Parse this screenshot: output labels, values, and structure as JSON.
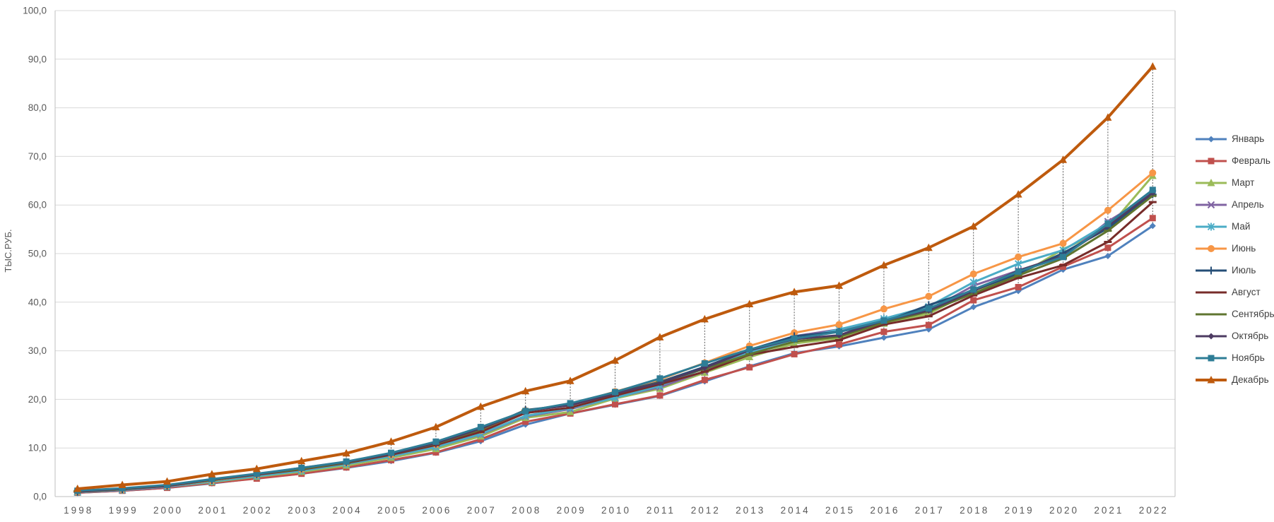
{
  "page": {
    "background": "#ffffff"
  },
  "chart_data": {
    "type": "line",
    "title": "",
    "xlabel": "",
    "ylabel": "ТЫС.РУБ.",
    "ylim": [
      0,
      100
    ],
    "y_tick_labels": [
      "0,0",
      "10,0",
      "20,0",
      "30,0",
      "40,0",
      "50,0",
      "60,0",
      "70,0",
      "80,0",
      "90,0",
      "100,0"
    ],
    "grid": "horizontal",
    "legend_position": "right",
    "high_low_lines": true,
    "axis_color": "#BFBFBF",
    "gridline_color": "#D9D9D9",
    "high_low_line_color": "#595959",
    "tick_label_color": "#595959",
    "categories": [
      "1998",
      "1999",
      "2000",
      "2001",
      "2002",
      "2003",
      "2004",
      "2005",
      "2006",
      "2007",
      "2008",
      "2009",
      "2010",
      "2011",
      "2012",
      "2013",
      "2014",
      "2015",
      "2016",
      "2017",
      "2018",
      "2019",
      "2020",
      "2021",
      "2022"
    ],
    "series": [
      {
        "name": "Январь",
        "color": "#4F81BD",
        "marker": "diamond",
        "line_width": 3,
        "values": [
          0.8,
          1.2,
          1.8,
          2.7,
          3.8,
          4.7,
          5.9,
          7.3,
          9.0,
          11.4,
          14.8,
          17.1,
          18.9,
          20.7,
          23.7,
          26.8,
          29.5,
          30.9,
          32.7,
          34.4,
          39.0,
          42.3,
          46.7,
          49.5,
          55.7
        ]
      },
      {
        "name": "Февраль",
        "color": "#C0504D",
        "marker": "square",
        "line_width": 3,
        "values": [
          0.8,
          1.2,
          1.8,
          2.8,
          3.7,
          4.7,
          6.0,
          7.5,
          9.1,
          11.8,
          15.4,
          17.1,
          19.0,
          20.8,
          24.0,
          26.6,
          29.3,
          31.3,
          33.9,
          35.3,
          40.4,
          43.1,
          47.3,
          51.2,
          57.3
        ]
      },
      {
        "name": "Март",
        "color": "#9BBB59",
        "marker": "triangle",
        "line_width": 3,
        "values": [
          0.9,
          1.3,
          2.0,
          3.0,
          4.1,
          5.1,
          6.4,
          8.0,
          9.8,
          12.4,
          16.2,
          17.4,
          20.2,
          22.2,
          25.5,
          28.7,
          31.5,
          32.6,
          35.6,
          37.6,
          42.4,
          45.4,
          50.9,
          55.2,
          66.0
        ]
      },
      {
        "name": "Апрель",
        "color": "#8064A2",
        "marker": "x",
        "line_width": 3,
        "values": [
          0.9,
          1.3,
          2.0,
          3.1,
          4.3,
          5.4,
          6.7,
          8.3,
          10.2,
          12.8,
          16.5,
          18.0,
          20.4,
          22.5,
          25.8,
          29.5,
          33.0,
          34.4,
          36.2,
          38.3,
          43.4,
          46.5,
          49.3,
          56.6,
          62.3
        ]
      },
      {
        "name": "Май",
        "color": "#4BACC6",
        "marker": "asterisk",
        "line_width": 3,
        "values": [
          0.9,
          1.4,
          2.1,
          3.1,
          4.2,
          5.3,
          6.7,
          8.3,
          10.2,
          12.9,
          16.6,
          18.2,
          20.3,
          22.8,
          26.4,
          29.7,
          32.3,
          34.4,
          36.6,
          39.1,
          44.1,
          47.9,
          50.7,
          56.2,
          62.5
        ]
      },
      {
        "name": "Июнь",
        "color": "#F79646",
        "marker": "circle",
        "line_width": 3,
        "values": [
          1.0,
          1.5,
          2.2,
          3.3,
          4.5,
          5.6,
          7.0,
          8.6,
          10.7,
          13.6,
          17.7,
          18.9,
          21.6,
          24.1,
          27.5,
          31.0,
          33.7,
          35.4,
          38.6,
          41.2,
          45.8,
          49.3,
          52.1,
          58.9,
          66.6
        ]
      },
      {
        "name": "Июль",
        "color": "#254E77",
        "marker": "plus",
        "line_width": 3,
        "values": [
          1.0,
          1.5,
          2.2,
          3.4,
          4.6,
          5.8,
          7.1,
          8.8,
          10.9,
          13.8,
          17.8,
          18.9,
          21.3,
          23.6,
          26.7,
          30.2,
          33.0,
          33.9,
          35.9,
          39.4,
          42.4,
          45.9,
          50.1,
          55.2,
          62.2
        ]
      },
      {
        "name": "Август",
        "color": "#772C2A",
        "marker": "dash",
        "line_width": 3,
        "values": [
          1.0,
          1.5,
          2.2,
          3.4,
          4.5,
          5.6,
          6.9,
          8.6,
          10.6,
          13.3,
          17.2,
          18.3,
          20.8,
          23.1,
          25.7,
          29.2,
          30.8,
          32.2,
          35.4,
          37.1,
          41.4,
          45.0,
          47.6,
          52.4,
          60.6
        ]
      },
      {
        "name": "Сентябрь",
        "color": "#5F7530",
        "marker": "dash",
        "line_width": 3,
        "values": [
          1.1,
          1.5,
          2.3,
          3.4,
          4.6,
          5.7,
          7.0,
          8.8,
          10.9,
          13.8,
          17.7,
          18.8,
          21.2,
          23.5,
          26.3,
          29.3,
          31.9,
          32.9,
          35.8,
          38.1,
          41.8,
          45.5,
          49.0,
          54.7,
          61.9
        ]
      },
      {
        "name": "Октябрь",
        "color": "#4D3B62",
        "marker": "diamond",
        "line_width": 3,
        "values": [
          1.1,
          1.6,
          2.3,
          3.5,
          4.6,
          5.9,
          7.1,
          8.8,
          11.0,
          14.0,
          17.6,
          18.8,
          21.2,
          23.4,
          26.5,
          30.1,
          32.4,
          33.2,
          36.2,
          38.3,
          42.3,
          46.5,
          49.5,
          55.7,
          62.5
        ]
      },
      {
        "name": "Ноябрь",
        "color": "#2E7D96",
        "marker": "square",
        "line_width": 3,
        "values": [
          1.2,
          1.7,
          2.4,
          3.6,
          4.7,
          5.9,
          7.2,
          9.0,
          11.3,
          14.3,
          17.6,
          19.2,
          21.5,
          24.3,
          27.4,
          30.3,
          32.5,
          33.9,
          36.2,
          38.7,
          42.6,
          46.3,
          49.3,
          56.1,
          63.1
        ]
      },
      {
        "name": "Декабрь",
        "color": "#BE5A0D",
        "marker": "triangle",
        "line_width": 4,
        "values": [
          1.6,
          2.4,
          3.1,
          4.6,
          5.7,
          7.3,
          8.9,
          11.3,
          14.3,
          18.5,
          21.7,
          23.8,
          28.0,
          32.8,
          36.5,
          39.6,
          42.1,
          43.4,
          47.6,
          51.2,
          55.6,
          62.2,
          69.3,
          78.0,
          88.5
        ]
      }
    ]
  }
}
